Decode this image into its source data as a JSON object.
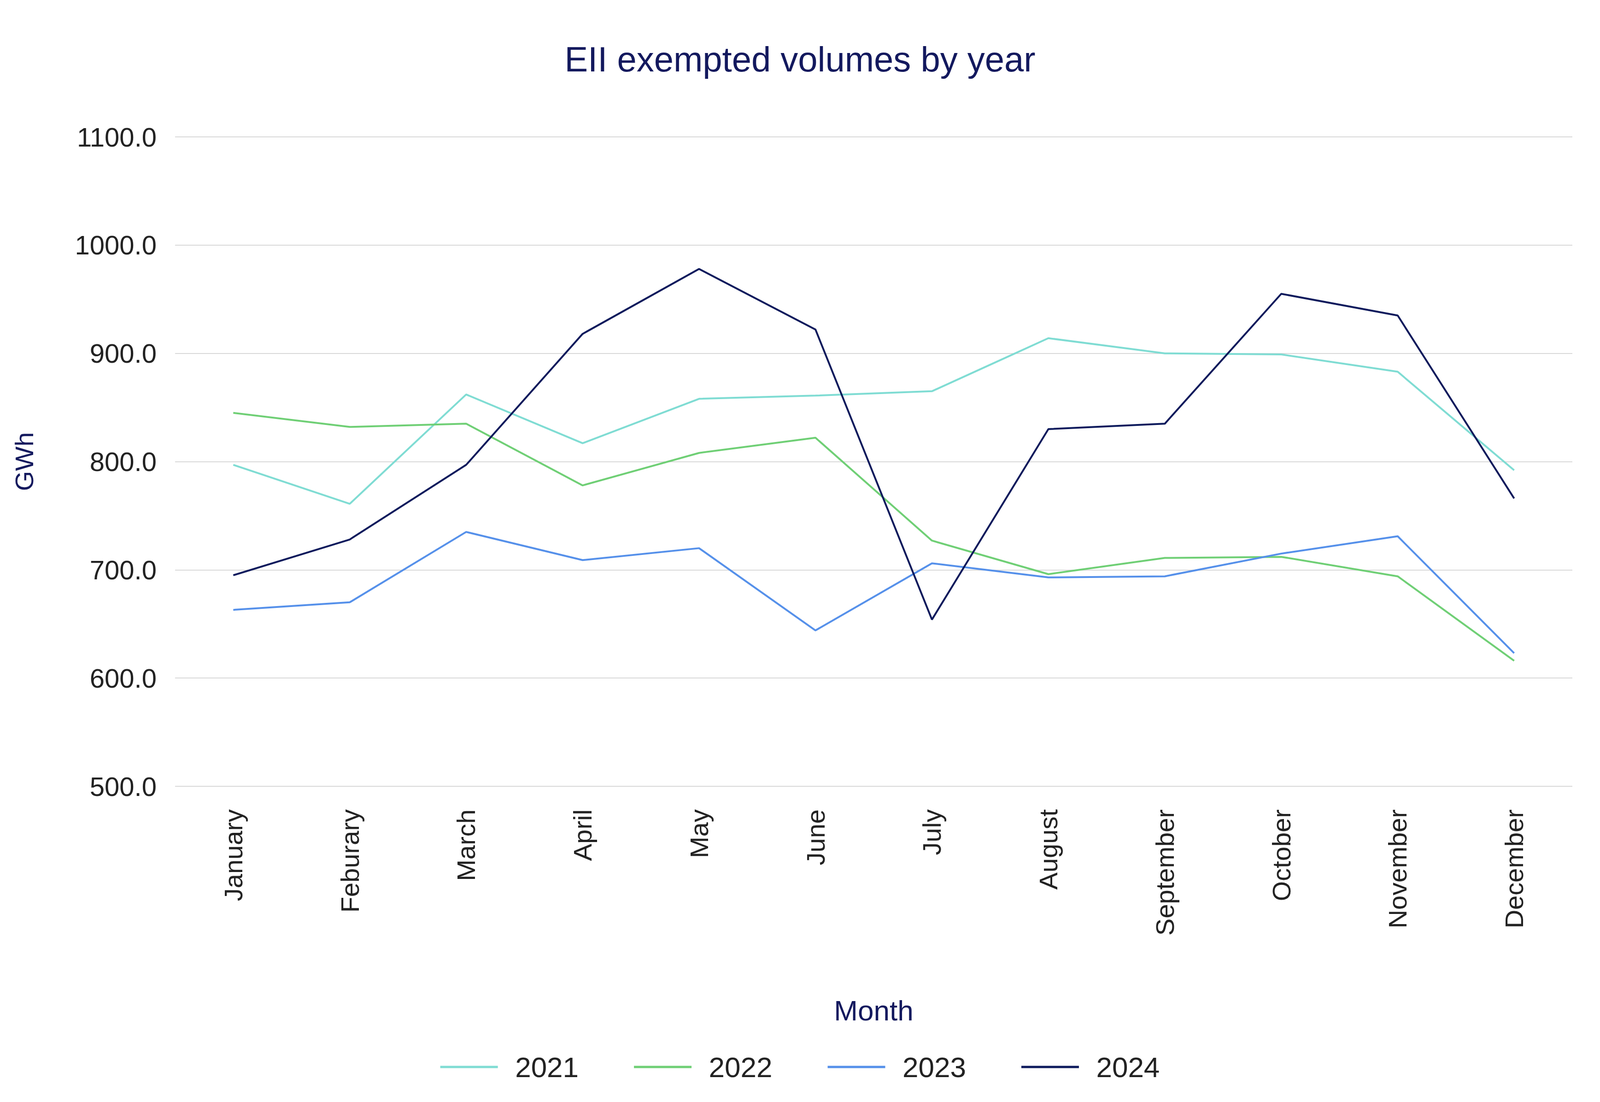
{
  "chart_data": {
    "type": "line",
    "title": "EII exempted volumes by year",
    "x_label": "Month",
    "y_label": "GWh",
    "categories": [
      "January",
      "Feburary",
      "March",
      "April",
      "May",
      "June",
      "July",
      "August",
      "September",
      "October",
      "November",
      "December"
    ],
    "series": [
      {
        "name": "2021",
        "color": "#7fdcd3",
        "values": [
          797,
          761,
          862,
          817,
          858,
          861,
          865,
          914,
          900,
          899,
          883,
          792
        ]
      },
      {
        "name": "2022",
        "color": "#6fcf75",
        "values": [
          845,
          832,
          835,
          778,
          808,
          822,
          727,
          696,
          711,
          712,
          694,
          616
        ]
      },
      {
        "name": "2023",
        "color": "#5590ea",
        "values": [
          663,
          670,
          735,
          709,
          720,
          644,
          706,
          693,
          694,
          715,
          731,
          623
        ]
      },
      {
        "name": "2024",
        "color": "#0d1a5c",
        "values": [
          695,
          728,
          797,
          918,
          978,
          922,
          654,
          830,
          835,
          955,
          935,
          766
        ]
      }
    ],
    "ylim": [
      500,
      1100
    ],
    "yticks": [
      {
        "value": 500,
        "label": "500.0"
      },
      {
        "value": 600,
        "label": "600.0"
      },
      {
        "value": 700,
        "label": "700.0"
      },
      {
        "value": 800,
        "label": "800.0"
      },
      {
        "value": 900,
        "label": "900.0"
      },
      {
        "value": 1000,
        "label": "1000.0"
      },
      {
        "value": 1100,
        "label": "1100.0"
      }
    ],
    "grid": true,
    "legend": "bottom",
    "marker": "none",
    "line_style": "solid"
  }
}
